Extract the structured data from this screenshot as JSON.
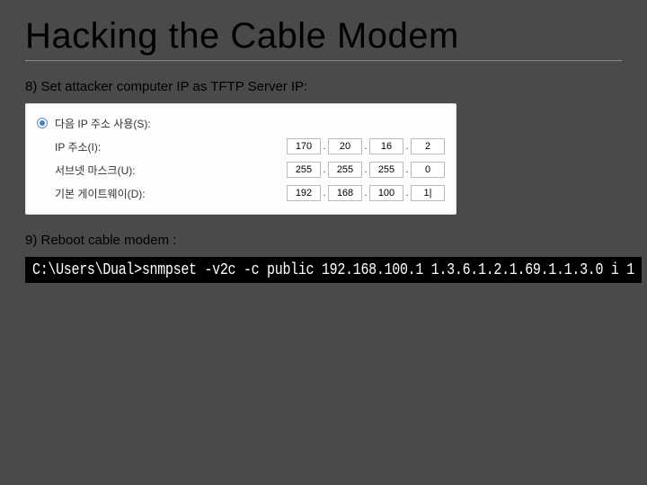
{
  "title": "Hacking the Cable Modem",
  "step8": "8) Set attacker computer IP as TFTP Server IP:",
  "step9": "9) Reboot cable modem :",
  "ip_panel": {
    "radio_label": "다음 IP 주소 사용(S):",
    "rows": [
      {
        "label": "IP 주소(I):",
        "octets": [
          "170",
          "20",
          "16",
          "2"
        ]
      },
      {
        "label": "서브넷 마스크(U):",
        "octets": [
          "255",
          "255",
          "255",
          "0"
        ]
      },
      {
        "label": "기본 게이트웨이(D):",
        "octets": [
          "192",
          "168",
          "100",
          "1|"
        ]
      }
    ]
  },
  "terminal": {
    "background_color": "#000000",
    "text_color": "#ffffff",
    "command": "C:\\Users\\Dual>snmpset -v2c -c public 192.168.100.1 1.3.6.1.2.1.69.1.1.3.0 i 1"
  },
  "colors": {
    "slide_bg": "#4a4a4a",
    "panel_bg": "#fdfdfd",
    "panel_border": "#e8e6e2",
    "field_border": "#bbbbbb",
    "radio_outer": "#5a8cc7",
    "radio_inner": "#4a7fbf"
  }
}
